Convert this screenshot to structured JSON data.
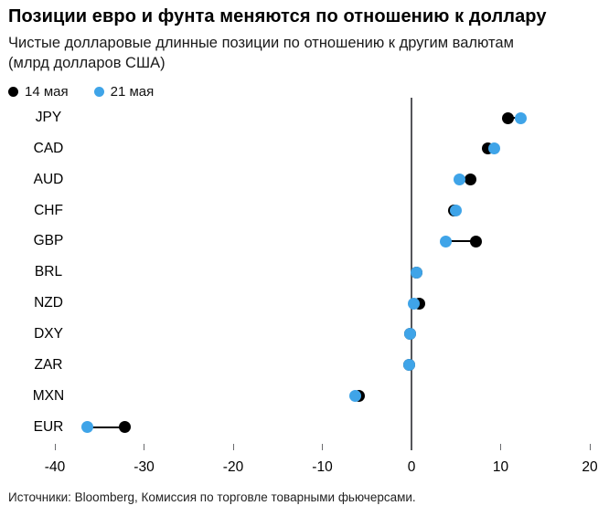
{
  "title": "Позиции евро и фунта меняются по отношению к доллару",
  "subtitle": "Чистые долларовые длинные позиции по отношению к другим валютам (млрд долларов США)",
  "legend": [
    {
      "label": "14 мая",
      "color": "#000000"
    },
    {
      "label": "21 мая",
      "color": "#3fa4e8"
    }
  ],
  "source": "Источники: Bloomberg, Комиссия по торговле товарными фьючерсами.",
  "colors": {
    "series_14_may": "#000000",
    "series_21_may": "#3fa4e8",
    "zero_line": "#55565a"
  },
  "chart_data": {
    "type": "scatter",
    "subtype": "dumbbell-dot-plot",
    "title": "Позиции евро и фунта меняются по отношению к доллару",
    "subtitle": "Чистые долларовые длинные позиции по отношению к другим валютам (млрд долларов США)",
    "categories": [
      "JPY",
      "CAD",
      "AUD",
      "CHF",
      "GBP",
      "BRL",
      "NZD",
      "DXY",
      "ZAR",
      "MXN",
      "EUR"
    ],
    "series": [
      {
        "name": "14 мая",
        "color": "#000000",
        "values": [
          10.8,
          8.6,
          6.6,
          4.8,
          7.2,
          0.6,
          0.9,
          -0.2,
          -0.3,
          -5.9,
          -32.2
        ]
      },
      {
        "name": "21 мая",
        "color": "#3fa4e8",
        "values": [
          12.3,
          9.3,
          5.4,
          5.0,
          3.8,
          0.6,
          0.3,
          -0.2,
          -0.3,
          -6.3,
          -36.4
        ]
      }
    ],
    "xlabel": "",
    "ylabel": "",
    "xlim": [
      -40,
      20
    ],
    "xticks": [
      -40,
      -30,
      -20,
      -10,
      0,
      10,
      20
    ],
    "grid": false,
    "zero_reference_line": true,
    "legend_position": "top-left",
    "units": "млрд долларов США"
  }
}
